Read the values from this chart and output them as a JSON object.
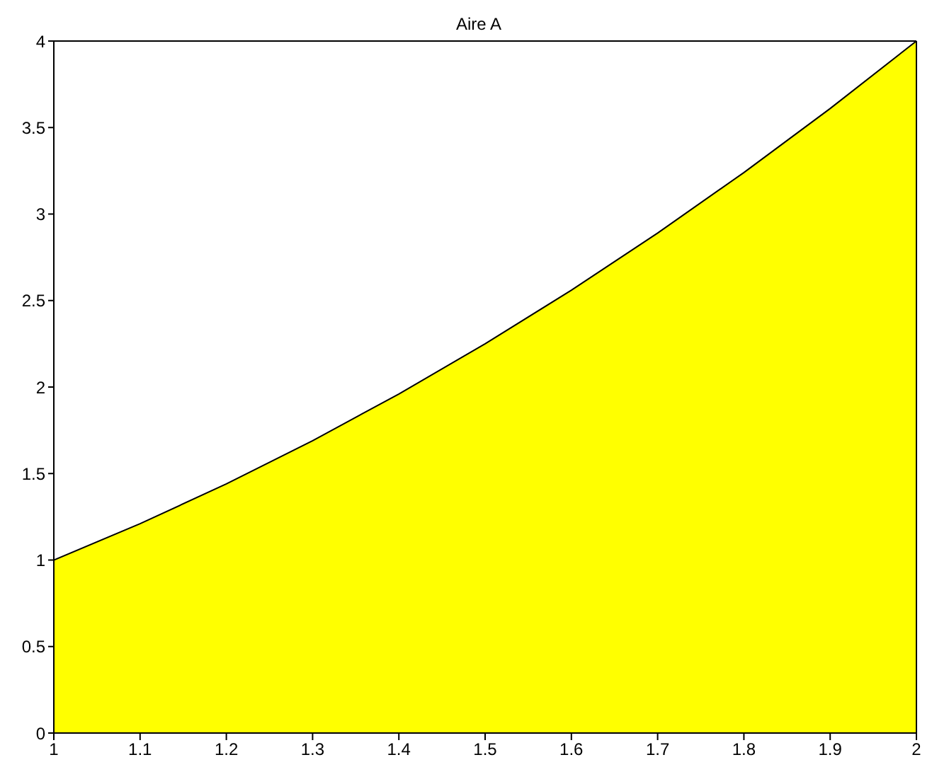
{
  "chart_data": {
    "type": "area",
    "title": "Aire A",
    "x": [
      1,
      1.1,
      1.2,
      1.3,
      1.4,
      1.5,
      1.6,
      1.7,
      1.8,
      1.9,
      2
    ],
    "values": [
      1,
      1.21,
      1.44,
      1.69,
      1.96,
      2.25,
      2.56,
      2.89,
      3.24,
      3.61,
      4
    ],
    "color": "#ffff00",
    "xlim": [
      1,
      2
    ],
    "xticks": [
      1,
      1.1,
      1.2,
      1.3,
      1.4,
      1.5,
      1.6,
      1.7,
      1.8,
      1.9,
      2
    ],
    "ylim": [
      0,
      4
    ],
    "yticks": [
      0,
      0.5,
      1,
      1.5,
      2,
      2.5,
      3,
      3.5,
      4
    ]
  }
}
